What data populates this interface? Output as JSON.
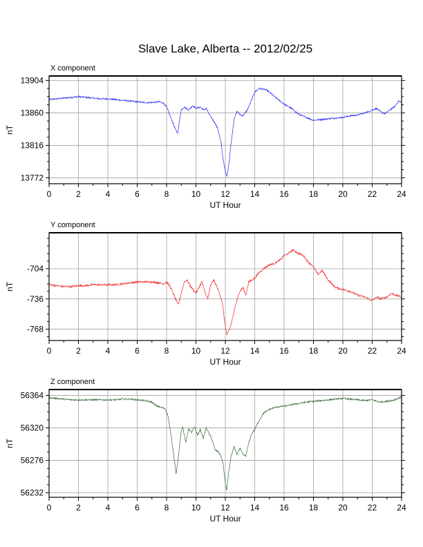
{
  "title": "Slave Lake, Alberta -- 2012/02/25",
  "chart_data": [
    {
      "type": "line",
      "panel_label": "X component",
      "xlabel": "UT Hour",
      "ylabel": "nT",
      "xlim": [
        0,
        24
      ],
      "ylim": [
        13764,
        13910
      ],
      "xticks": [
        0,
        2,
        4,
        6,
        8,
        10,
        12,
        14,
        16,
        18,
        20,
        22,
        24
      ],
      "yticks": [
        13772,
        13816,
        13860,
        13904
      ],
      "grid": true,
      "color": "#2222ee",
      "series": [
        {
          "x": [
            0,
            0.5,
            1,
            1.5,
            2,
            2.5,
            3,
            3.5,
            4,
            4.5,
            5,
            5.5,
            6,
            6.5,
            7,
            7.5,
            7.8,
            8.0,
            8.2,
            8.4,
            8.6,
            8.75,
            8.9,
            9.0,
            9.2,
            9.5,
            9.8,
            10.0,
            10.3,
            10.5,
            10.7,
            10.9,
            11.1,
            11.3,
            11.5,
            11.7,
            11.85,
            12.0,
            12.1,
            12.25,
            12.4,
            12.6,
            12.8,
            13.0,
            13.2,
            13.5,
            13.8,
            14.0,
            14.3,
            14.6,
            14.8,
            15.0,
            15.3,
            15.6,
            16.0,
            16.5,
            17.0,
            17.5,
            18.0,
            18.5,
            19.0,
            19.5,
            20.0,
            20.5,
            21.0,
            21.5,
            21.8,
            22.0,
            22.3,
            22.6,
            22.9,
            23.2,
            23.5,
            23.8,
            24
          ],
          "values": [
            13878,
            13879,
            13880,
            13881,
            13882,
            13881,
            13880,
            13879,
            13879,
            13878,
            13877,
            13876,
            13875,
            13874,
            13874,
            13875,
            13873,
            13868,
            13858,
            13848,
            13838,
            13832,
            13852,
            13864,
            13868,
            13864,
            13870,
            13866,
            13868,
            13864,
            13866,
            13858,
            13852,
            13846,
            13838,
            13820,
            13798,
            13780,
            13774,
            13792,
            13820,
            13852,
            13862,
            13858,
            13856,
            13864,
            13878,
            13888,
            13893,
            13892,
            13891,
            13888,
            13883,
            13878,
            13872,
            13866,
            13858,
            13854,
            13850,
            13851,
            13852,
            13853,
            13854,
            13856,
            13857,
            13860,
            13862,
            13864,
            13866,
            13861,
            13859,
            13864,
            13868,
            13876,
            13874
          ]
        }
      ]
    },
    {
      "type": "line",
      "panel_label": "Y component",
      "xlabel": "UT Hour",
      "ylabel": "nT",
      "xlim": [
        0,
        24
      ],
      "ylim": [
        -780,
        -666
      ],
      "xticks": [
        0,
        2,
        4,
        6,
        8,
        10,
        12,
        14,
        16,
        18,
        20,
        22,
        24
      ],
      "yticks": [
        -704,
        -736,
        -768
      ],
      "grid": true,
      "color": "#ee2222",
      "series": [
        {
          "x": [
            0,
            0.5,
            1,
            1.5,
            2,
            2.5,
            3,
            3.5,
            4,
            4.5,
            5,
            5.5,
            6,
            6.5,
            7,
            7.5,
            7.8,
            8.0,
            8.2,
            8.4,
            8.6,
            8.8,
            9.0,
            9.2,
            9.4,
            9.6,
            9.8,
            10.0,
            10.2,
            10.4,
            10.6,
            10.8,
            11.0,
            11.2,
            11.4,
            11.6,
            11.8,
            11.95,
            12.1,
            12.3,
            12.5,
            12.8,
            13.0,
            13.2,
            13.4,
            13.6,
            14.0,
            14.3,
            14.6,
            15.0,
            15.4,
            15.8,
            16.0,
            16.3,
            16.6,
            17.0,
            17.3,
            17.6,
            18.0,
            18.3,
            18.6,
            19.0,
            19.5,
            20.0,
            20.5,
            21.0,
            21.5,
            22.0,
            22.3,
            22.6,
            23.0,
            23.3,
            23.6,
            24
          ],
          "values": [
            -721,
            -722,
            -723,
            -723,
            -722,
            -722,
            -721,
            -721,
            -721,
            -721,
            -720,
            -719,
            -718,
            -718,
            -718,
            -719,
            -720,
            -718,
            -722,
            -728,
            -736,
            -742,
            -730,
            -718,
            -716,
            -722,
            -726,
            -730,
            -724,
            -718,
            -728,
            -736,
            -722,
            -716,
            -722,
            -730,
            -740,
            -760,
            -774,
            -768,
            -756,
            -736,
            -728,
            -724,
            -732,
            -718,
            -714,
            -708,
            -704,
            -700,
            -698,
            -694,
            -690,
            -688,
            -684,
            -688,
            -690,
            -696,
            -702,
            -710,
            -706,
            -716,
            -724,
            -726,
            -728,
            -732,
            -734,
            -738,
            -734,
            -736,
            -734,
            -730,
            -732,
            -734
          ]
        }
      ]
    },
    {
      "type": "line",
      "panel_label": "Z component",
      "xlabel": "UT Hour",
      "ylabel": "nT",
      "xlim": [
        0,
        24
      ],
      "ylim": [
        56226,
        56372
      ],
      "xticks": [
        0,
        2,
        4,
        6,
        8,
        10,
        12,
        14,
        16,
        18,
        20,
        22,
        24
      ],
      "yticks": [
        56232,
        56276,
        56320,
        56364
      ],
      "grid": true,
      "color": "#336633",
      "series": [
        {
          "x": [
            0,
            0.5,
            1,
            1.5,
            2,
            2.5,
            3,
            3.5,
            4,
            4.5,
            5,
            5.5,
            6,
            6.5,
            7,
            7.3,
            7.6,
            7.9,
            8.1,
            8.3,
            8.5,
            8.65,
            8.8,
            9.0,
            9.1,
            9.3,
            9.5,
            9.7,
            9.9,
            10.1,
            10.3,
            10.5,
            10.7,
            10.9,
            11.1,
            11.3,
            11.5,
            11.7,
            11.85,
            12.0,
            12.1,
            12.2,
            12.4,
            12.6,
            12.8,
            13.0,
            13.2,
            13.4,
            13.6,
            13.8,
            14.0,
            14.3,
            14.6,
            15.0,
            15.4,
            15.8,
            16.2,
            16.6,
            17.0,
            17.5,
            18.0,
            18.5,
            19.0,
            19.5,
            20.0,
            20.5,
            21.0,
            21.5,
            22.0,
            22.5,
            23.0,
            23.5,
            24
          ],
          "values": [
            56361,
            56360,
            56359,
            56358,
            56358,
            56358,
            56358,
            56358,
            56358,
            56358,
            56359,
            56359,
            56358,
            56357,
            56355,
            56350,
            56348,
            56346,
            56336,
            56310,
            56282,
            56258,
            56280,
            56316,
            56322,
            56300,
            56318,
            56314,
            56322,
            56310,
            56318,
            56306,
            56320,
            56312,
            56304,
            56290,
            56288,
            56282,
            56272,
            56244,
            56236,
            56256,
            56282,
            56294,
            56284,
            56292,
            56284,
            56282,
            56300,
            56312,
            56318,
            56330,
            56340,
            56345,
            56348,
            56349,
            56350,
            56352,
            56353,
            56355,
            56356,
            56357,
            56358,
            56359,
            56360,
            56359,
            56358,
            56357,
            56358,
            56355,
            56356,
            56358,
            56362
          ]
        }
      ]
    }
  ]
}
